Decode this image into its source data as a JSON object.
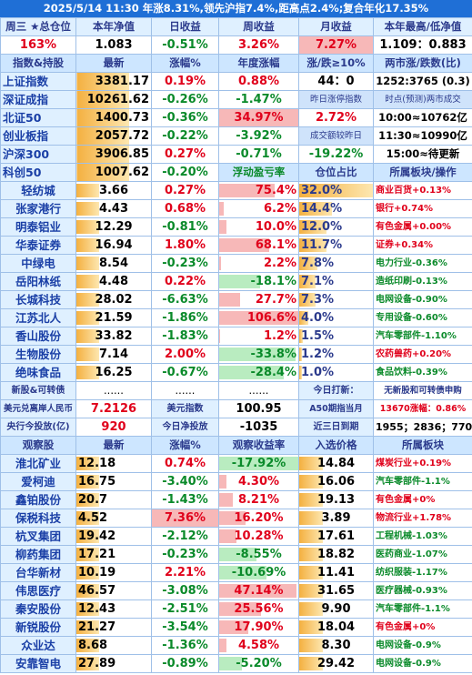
{
  "title": "2025/5/14 11:30 年涨8.31%,领先沪指7.4%,距高点2.4%;复合年化17.35%",
  "summary": {
    "headers": [
      "周三 ★总仓位",
      "本年净值",
      "日收益",
      "周收益",
      "月收益",
      "本年最高/低净值"
    ],
    "values": [
      "163%",
      "1.083",
      "-0.51%",
      "3.26%",
      "7.27%",
      "1.109：0.883"
    ]
  },
  "index_header": [
    "指数&持股",
    "最新",
    "涨幅%",
    "年度涨幅",
    "涨/跌≥10%",
    "两市涨/跌数(比)"
  ],
  "indices": [
    {
      "name": "上证指数",
      "price": "3381.17",
      "change": "0.19%",
      "ytd": "0.88%",
      "c5": "44：0",
      "c6": "1252:3765 (0.3)"
    },
    {
      "name": "深证成指",
      "price": "10261.62",
      "change": "-0.26%",
      "ytd": "-1.47%",
      "c5": "昨日涨停指数",
      "c6": "时点(预测)两市成交"
    },
    {
      "name": "北证50",
      "price": "1400.73",
      "change": "-0.36%",
      "ytd": "34.97%",
      "c5": "2.72%",
      "c6": "10:00≈10762亿"
    },
    {
      "name": "创业板指",
      "price": "2057.72",
      "change": "-0.22%",
      "ytd": "-3.92%",
      "c5": "成交额较昨日",
      "c6": "11:30≈10990亿"
    },
    {
      "name": "沪深300",
      "price": "3906.85",
      "change": "0.27%",
      "ytd": "-0.71%",
      "c5": "-19.22%",
      "c6": "15:00≈待更新"
    },
    {
      "name": "科创50",
      "price": "1007.62",
      "change": "-0.20%",
      "ytd": "浮动盈亏率",
      "c5": "仓位占比",
      "c6": "所属板块/操作"
    }
  ],
  "holdings": [
    {
      "name": "轻纺城",
      "price": "3.66",
      "change": "0.27%",
      "pnl": "75.4%",
      "pnl_val": 75.4,
      "weight": "32.0%",
      "weight_val": 32.0,
      "sector": "商业百货+0.13%"
    },
    {
      "name": "张家港行",
      "price": "4.43",
      "change": "0.68%",
      "pnl": "6.2%",
      "pnl_val": 6.2,
      "weight": "14.4%",
      "weight_val": 14.4,
      "sector": "银行+0.74%"
    },
    {
      "name": "明泰铝业",
      "price": "12.29",
      "change": "-0.81%",
      "pnl": "10.0%",
      "pnl_val": 10.0,
      "weight": "12.0%",
      "weight_val": 12.0,
      "sector": "有色金属+0.00%"
    },
    {
      "name": "华泰证券",
      "price": "16.94",
      "change": "1.80%",
      "pnl": "68.1%",
      "pnl_val": 68.1,
      "weight": "11.7%",
      "weight_val": 11.7,
      "sector": "证券+0.34%"
    },
    {
      "name": "中绿电",
      "price": "8.54",
      "change": "-0.23%",
      "pnl": "2.2%",
      "pnl_val": 2.2,
      "weight": "7.8%",
      "weight_val": 7.8,
      "sector": "电力行业-0.36%"
    },
    {
      "name": "岳阳林纸",
      "price": "4.48",
      "change": "0.22%",
      "pnl": "-18.1%",
      "pnl_val": -18.1,
      "weight": "7.1%",
      "weight_val": 7.1,
      "sector": "造纸印刷-0.13%"
    },
    {
      "name": "长城科技",
      "price": "28.02",
      "change": "-6.63%",
      "pnl": "27.7%",
      "pnl_val": 27.7,
      "weight": "7.3%",
      "weight_val": 7.3,
      "sector": "电网设备-0.90%"
    },
    {
      "name": "江苏北人",
      "price": "21.59",
      "change": "-1.86%",
      "pnl": "106.6%",
      "pnl_val": 106.6,
      "weight": "4.0%",
      "weight_val": 4.0,
      "sector": "专用设备-0.60%"
    },
    {
      "name": "香山股份",
      "price": "33.82",
      "change": "-1.83%",
      "pnl": "1.2%",
      "pnl_val": 1.2,
      "weight": "1.5%",
      "weight_val": 1.5,
      "sector": "汽车零部件-1.10%"
    },
    {
      "name": "生物股份",
      "price": "7.14",
      "change": "2.00%",
      "pnl": "-33.8%",
      "pnl_val": -33.8,
      "weight": "1.2%",
      "weight_val": 1.2,
      "sector": "农药兽药+0.20%"
    },
    {
      "name": "绝味食品",
      "price": "16.25",
      "change": "-0.67%",
      "pnl": "-28.4%",
      "pnl_val": -28.4,
      "weight": "1.0%",
      "weight_val": 1.0,
      "sector": "食品饮料-0.39%"
    }
  ],
  "new_row": {
    "label": "新股&可转债",
    "dots": "......",
    "today_label": "今日打新：",
    "today_val": "无新股和可转债申购"
  },
  "fx_row": {
    "label": "美元兑离岸人民币",
    "val": "7.2126",
    "usd_label": "美元指数",
    "usd_val": "100.95",
    "a50_label": "A50期指当月",
    "a50_val": "13670涨幅：0.86%"
  },
  "pboc_row": {
    "label": "央行今投放(亿)",
    "val": "920",
    "net_label": "今日净投放",
    "net_val": "-1035",
    "due_label": "近三日到期",
    "due_val": "1955；2836；770"
  },
  "watch_header": [
    "观察股",
    "最新",
    "涨幅%",
    "观察收益率",
    "入选价格",
    "所属板块"
  ],
  "watch": [
    {
      "name": "淮北矿业",
      "price": "12.18",
      "change": "0.74%",
      "ret": "-17.92%",
      "ret_val": -17.92,
      "entry": "14.84",
      "sector": "煤炭行业+0.19%"
    },
    {
      "name": "爱柯迪",
      "price": "16.75",
      "change": "-3.40%",
      "ret": "4.30%",
      "ret_val": 4.3,
      "entry": "16.06",
      "sector": "汽车零部件-1.1%"
    },
    {
      "name": "鑫铂股份",
      "price": "20.7",
      "change": "-1.43%",
      "ret": "8.21%",
      "ret_val": 8.21,
      "entry": "19.13",
      "sector": "有色金属+0%"
    },
    {
      "name": "保税科技",
      "price": "4.52",
      "change": "7.36%",
      "ret": "16.20%",
      "ret_val": 16.2,
      "entry": "3.89",
      "sector": "物流行业+1.78%"
    },
    {
      "name": "杭叉集团",
      "price": "19.42",
      "change": "-2.12%",
      "ret": "10.28%",
      "ret_val": 10.28,
      "entry": "17.61",
      "sector": "工程机械-1.03%"
    },
    {
      "name": "柳药集团",
      "price": "17.21",
      "change": "-0.23%",
      "ret": "-8.55%",
      "ret_val": -8.55,
      "entry": "18.82",
      "sector": "医药商业-1.07%"
    },
    {
      "name": "台华新材",
      "price": "10.19",
      "change": "2.21%",
      "ret": "-10.69%",
      "ret_val": -10.69,
      "entry": "11.41",
      "sector": "纺织服装-1.17%"
    },
    {
      "name": "伟思医疗",
      "price": "46.57",
      "change": "-3.08%",
      "ret": "47.14%",
      "ret_val": 47.14,
      "entry": "31.65",
      "sector": "医疗器械-0.93%"
    },
    {
      "name": "秦安股份",
      "price": "12.43",
      "change": "-2.51%",
      "ret": "25.56%",
      "ret_val": 25.56,
      "entry": "9.90",
      "sector": "汽车零部件-1.1%"
    },
    {
      "name": "新锐股份",
      "price": "21.27",
      "change": "-3.54%",
      "ret": "17.90%",
      "ret_val": 17.9,
      "entry": "18.04",
      "sector": "有色金属+0%"
    },
    {
      "name": "众业达",
      "price": "8.68",
      "change": "-1.36%",
      "ret": "4.58%",
      "ret_val": 4.58,
      "entry": "8.30",
      "sector": "电网设备-0.9%"
    },
    {
      "name": "安靠智电",
      "price": "27.89",
      "change": "-0.89%",
      "ret": "-5.20%",
      "ret_val": -5.2,
      "entry": "29.42",
      "sector": "电网设备-0.9%"
    }
  ]
}
